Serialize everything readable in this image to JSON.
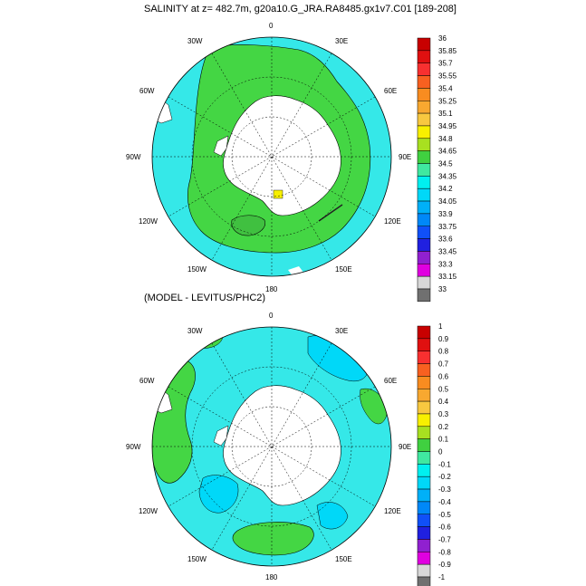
{
  "top_panel": {
    "title": "SALINITY at z= 482.7m, g20a10.G_JRA.RA8485.gx1v7.C01 [189-208]",
    "lon_labels": [
      "0",
      "30E",
      "60E",
      "90E",
      "120E",
      "150E",
      "180",
      "150W",
      "120W",
      "90W",
      "60W",
      "30W"
    ],
    "colorbar": {
      "levels": [
        "36",
        "35.85",
        "35.7",
        "35.55",
        "35.4",
        "35.25",
        "35.1",
        "34.95",
        "34.8",
        "34.65",
        "34.5",
        "34.35",
        "34.2",
        "34.05",
        "33.9",
        "33.75",
        "33.6",
        "33.45",
        "33.3",
        "33.15",
        "33"
      ],
      "colors": [
        "#c80000",
        "#e01010",
        "#f83030",
        "#f86020",
        "#f88c20",
        "#f8a830",
        "#f8c840",
        "#f8f000",
        "#a8e020",
        "#40d040",
        "#40e8a0",
        "#00f0f0",
        "#00d8f8",
        "#00b0f8",
        "#0088f8",
        "#1050f8",
        "#2020e0",
        "#9020d0",
        "#e000e0",
        "#d8d8d8"
      ]
    },
    "colors": {
      "ocean": "#35e8e8",
      "band": "#44d644",
      "yellow": "#f8f000",
      "land": "#ffffff"
    }
  },
  "bottom_panel": {
    "title": "(MODEL - LEVITUS/PHC2)",
    "lon_labels": [
      "0",
      "30E",
      "60E",
      "90E",
      "120E",
      "150E",
      "180",
      "150W",
      "120W",
      "90W",
      "60W",
      "30W"
    ],
    "colorbar": {
      "levels": [
        "1",
        "0.9",
        "0.8",
        "0.7",
        "0.6",
        "0.5",
        "0.4",
        "0.3",
        "0.2",
        "0.1",
        "0",
        "-0.1",
        "-0.2",
        "-0.3",
        "-0.4",
        "-0.5",
        "-0.6",
        "-0.7",
        "-0.8",
        "-0.9",
        "-1"
      ],
      "colors": [
        "#c80000",
        "#e01010",
        "#f83030",
        "#f86020",
        "#f88c20",
        "#f8a830",
        "#f8c840",
        "#f8f000",
        "#a8e020",
        "#40d040",
        "#40e8a0",
        "#00f0f0",
        "#00d8f8",
        "#00b0f8",
        "#0088f8",
        "#1050f8",
        "#2020e0",
        "#9020d0",
        "#e000e0",
        "#d8d8d8"
      ]
    },
    "colors": {
      "ocean": "#35e8e8",
      "pos": "#44d644",
      "neg": "#00d8f8",
      "land": "#ffffff"
    }
  }
}
